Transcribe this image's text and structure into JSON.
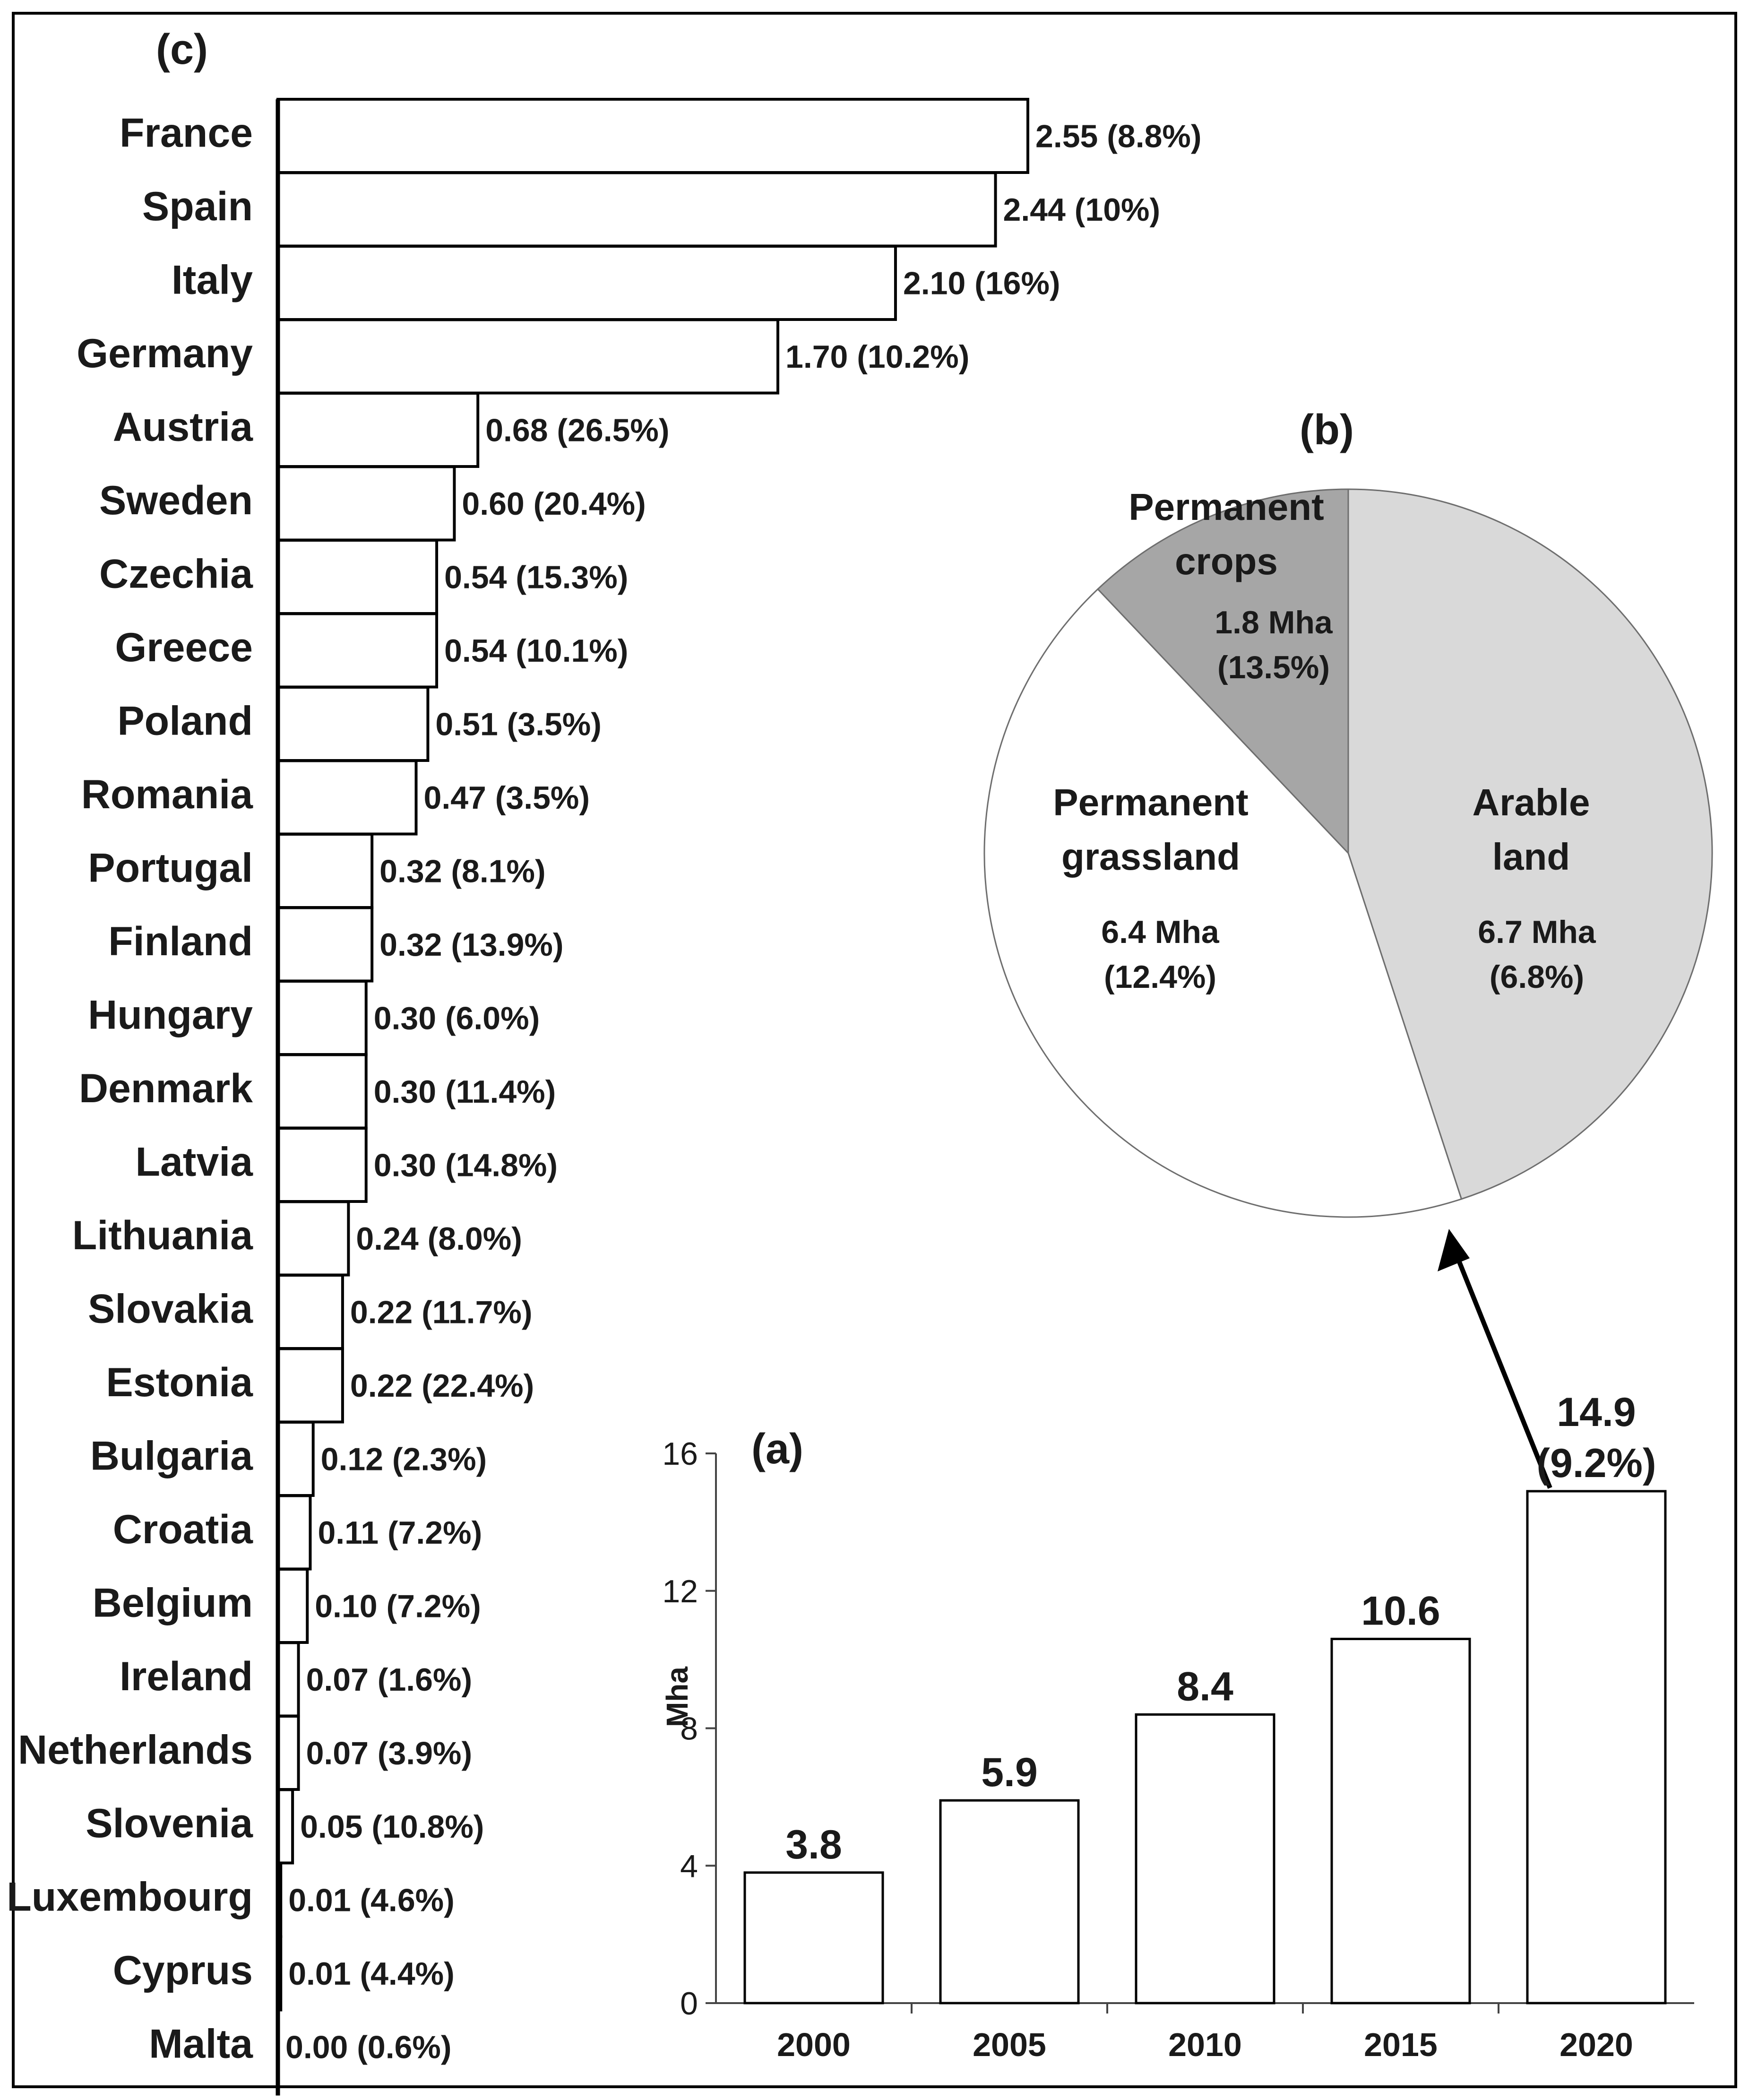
{
  "colors": {
    "arable": "#d9d9d9",
    "grassland": "#ffffff",
    "crops": "#a6a6a6",
    "bar_fill": "#ffffff",
    "stroke": "#000000"
  },
  "chart_data": [
    {
      "panel": "(c)",
      "type": "bar",
      "orientation": "horizontal",
      "unit_label": "Mha",
      "categories": [
        "France",
        "Spain",
        "Italy",
        "Germany",
        "Austria",
        "Sweden",
        "Czechia",
        "Greece",
        "Poland",
        "Romania",
        "Portugal",
        "Finland",
        "Hungary",
        "Denmark",
        "Latvia",
        "Lithuania",
        "Slovakia",
        "Estonia",
        "Bulgaria",
        "Croatia",
        "Belgium",
        "Ireland",
        "Netherlands",
        "Slovenia",
        "Luxembourg",
        "Cyprus",
        "Malta"
      ],
      "values": [
        2.55,
        2.44,
        2.1,
        1.7,
        0.68,
        0.6,
        0.54,
        0.54,
        0.51,
        0.47,
        0.32,
        0.32,
        0.3,
        0.3,
        0.3,
        0.24,
        0.22,
        0.22,
        0.12,
        0.11,
        0.1,
        0.07,
        0.07,
        0.05,
        0.01,
        0.01,
        0.0
      ],
      "labels": [
        "2.55 (8.8%)",
        "2.44 (10%)",
        "2.10 (16%)",
        "1.70 (10.2%)",
        "0.68 (26.5%)",
        "0.60 (20.4%)",
        "0.54 (15.3%)",
        "0.54 (10.1%)",
        "0.51 (3.5%)",
        "0.47 (3.5%)",
        "0.32 (8.1%)",
        "0.32 (13.9%)",
        "0.30 (6.0%)",
        "0.30 (11.4%)",
        "0.30 (14.8%)",
        "0.24 (8.0%)",
        "0.22 (11.7%)",
        "0.22 (22.4%)",
        "0.12 (2.3%)",
        "0.11 (7.2%)",
        "0.10 (7.2%)",
        "0.07 (1.6%)",
        "0.07 (3.9%)",
        "0.05 (10.8%)",
        "0.01 (4.6%)",
        "0.01 (4.4%)",
        "0.00 (0.6%)"
      ],
      "xlim": [
        0,
        2.55
      ]
    },
    {
      "panel": "(b)",
      "type": "pie",
      "slices": [
        {
          "name_lines": [
            "Arable",
            "land"
          ],
          "value": 6.7,
          "value_label": "6.7 Mha",
          "pct_label": "(6.8%)"
        },
        {
          "name_lines": [
            "Permanent",
            "grassland"
          ],
          "value": 6.4,
          "value_label": "6.4 Mha",
          "pct_label": "(12.4%)"
        },
        {
          "name_lines": [
            "Permanent",
            "crops"
          ],
          "value": 1.8,
          "value_label": "1.8 Mha",
          "pct_label": "(13.5%)"
        }
      ]
    },
    {
      "panel": "(a)",
      "type": "bar",
      "categories": [
        "2000",
        "2005",
        "2010",
        "2015",
        "2020"
      ],
      "values": [
        3.8,
        5.9,
        8.4,
        10.6,
        14.9
      ],
      "value_labels": [
        "3.8",
        "5.9",
        "8.4",
        "10.6",
        "14.9"
      ],
      "extra_label_last": "(9.2%)",
      "ylabel": "Mha",
      "ylim": [
        0,
        16
      ],
      "yticks": [
        0,
        4,
        8,
        12,
        16
      ]
    }
  ]
}
